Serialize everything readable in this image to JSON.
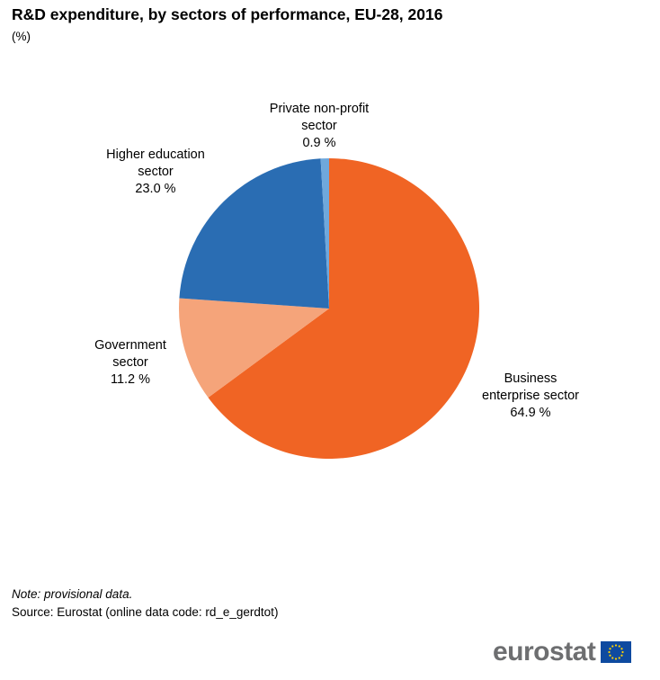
{
  "header": {
    "title": "R&D expenditure, by sectors of performance, EU-28, 2016",
    "subtitle": "(%)"
  },
  "footer": {
    "note": "Note: provisional data.",
    "source": "Source: Eurostat (online data code: rd_e_gerdtot)"
  },
  "logo": {
    "text": "eurostat"
  },
  "chart_data": {
    "type": "pie",
    "title": "R&D expenditure, by sectors of performance, EU-28, 2016",
    "subtitle": "(%)",
    "start": "12 o'clock",
    "direction": "clockwise",
    "slices": [
      {
        "label_lines": [
          "Business",
          "enterprise sector"
        ],
        "value": 64.9,
        "value_label": "64.9 %",
        "color": "#f06424"
      },
      {
        "label_lines": [
          "Government",
          "sector"
        ],
        "value": 11.2,
        "value_label": "11.2 %",
        "color": "#f5a47a"
      },
      {
        "label_lines": [
          "Higher education",
          "sector"
        ],
        "value": 23.0,
        "value_label": "23.0 %",
        "color": "#2a6db3"
      },
      {
        "label_lines": [
          "Private non-profit",
          "sector"
        ],
        "value": 0.9,
        "value_label": "0.9 %",
        "color": "#6fa8dc"
      }
    ]
  }
}
